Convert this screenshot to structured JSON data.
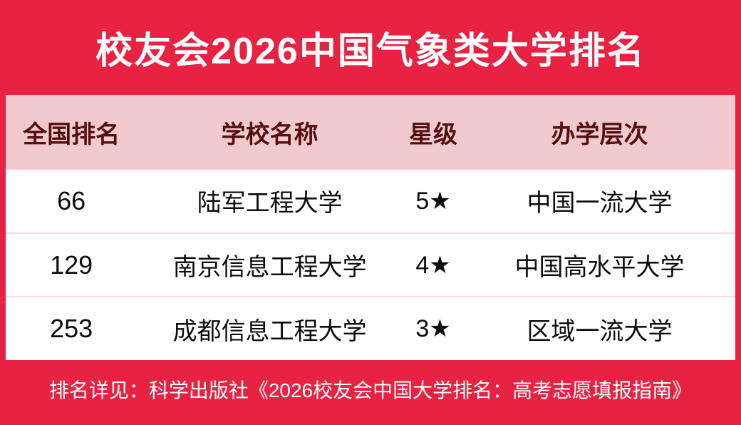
{
  "title": "校友会2026中国气象类大学排名",
  "colors": {
    "background_red": "#e82243",
    "header_band_pink": "#f2c9cc",
    "header_text_maroon": "#531011",
    "row_divider_pink": "#fbdee2",
    "card_white": "#ffffff",
    "title_text": "#ffffff",
    "row_text": "#0d0d0d"
  },
  "table": {
    "columns": [
      {
        "label": "全国排名"
      },
      {
        "label": "学校名称"
      },
      {
        "label": "星级"
      },
      {
        "label": "办学层次"
      }
    ],
    "rows": [
      {
        "rank": "66",
        "name": "陆军工程大学",
        "stars": "5★",
        "level": "中国一流大学"
      },
      {
        "rank": "129",
        "name": "南京信息工程大学",
        "stars": "4★",
        "level": "中国高水平大学"
      },
      {
        "rank": "253",
        "name": "成都信息工程大学",
        "stars": "3★",
        "level": "区域一流大学"
      }
    ]
  },
  "footer": {
    "note": "排名详见：科学出版社《2026校友会中国大学排名：高考志愿填报指南》"
  },
  "chart_data": {
    "type": "table",
    "title": "校友会2026中国气象类大学排名",
    "columns": [
      "全国排名",
      "学校名称",
      "星级",
      "办学层次"
    ],
    "rows": [
      [
        "66",
        "陆军工程大学",
        "5★",
        "中国一流大学"
      ],
      [
        "129",
        "南京信息工程大学",
        "4★",
        "中国高水平大学"
      ],
      [
        "253",
        "成都信息工程大学",
        "3★",
        "区域一流大学"
      ]
    ],
    "footnote": "排名详见：科学出版社《2026校友会中国大学排名：高考志愿填报指南》"
  }
}
